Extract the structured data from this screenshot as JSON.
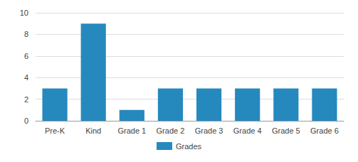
{
  "chart_data": {
    "type": "bar",
    "categories": [
      "Pre-K",
      "Kind",
      "Grade 1",
      "Grade 2",
      "Grade 3",
      "Grade 4",
      "Grade 5",
      "Grade 6"
    ],
    "series": [
      {
        "name": "Grades",
        "color": "#2589be",
        "values": [
          3,
          9,
          1,
          3,
          3,
          3,
          3,
          3
        ]
      }
    ],
    "ylim": [
      0,
      10
    ],
    "yticks": [
      0,
      2,
      4,
      6,
      8,
      10
    ],
    "grid": true,
    "legend": "bottom"
  }
}
